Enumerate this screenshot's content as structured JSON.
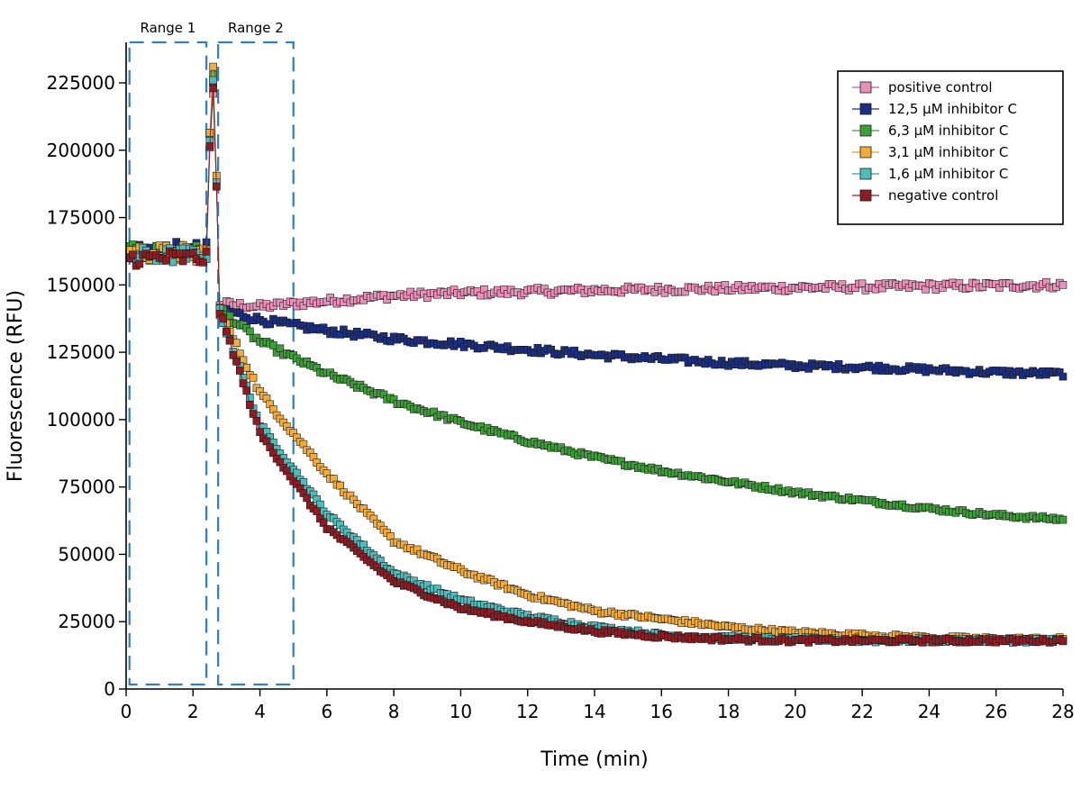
{
  "chart_data": {
    "type": "scatter",
    "xlabel": "Time (min)",
    "ylabel": "Fluorescence (RFU)",
    "xlim": [
      0,
      28
    ],
    "ylim": [
      0,
      240000
    ],
    "x_ticks": [
      "0",
      "2",
      "4",
      "6",
      "8",
      "10",
      "12",
      "14",
      "16",
      "18",
      "20",
      "22",
      "24",
      "26",
      "28"
    ],
    "y_ticks": [
      "0",
      "25000",
      "50000",
      "75000",
      "100000",
      "125000",
      "150000",
      "175000",
      "200000",
      "225000"
    ],
    "grid": false,
    "legend_position": "top-right",
    "annotations": [
      {
        "label": "Range 1",
        "x_range": [
          0.1,
          2.4
        ]
      },
      {
        "label": "Range 2",
        "x_range": [
          2.75,
          5.0
        ]
      }
    ],
    "sample_interval_min": 0.1,
    "series": [
      {
        "name": "positive control",
        "color": "#e98fb8",
        "line_color": "#b85d95",
        "baseline": 161000,
        "peak": 221000,
        "plateau": 150000,
        "points": [
          [
            2.8,
            143000
          ],
          [
            4,
            142000
          ],
          [
            6,
            144000
          ],
          [
            8,
            146000
          ],
          [
            10,
            147000
          ],
          [
            14,
            148000
          ],
          [
            20,
            149000
          ],
          [
            28,
            150000
          ]
        ]
      },
      {
        "name": "12,5 µM inhibitor C",
        "color": "#1c2e82",
        "line_color": "#1c2e82",
        "baseline": 163000,
        "peak": 225000,
        "plateau": 117000,
        "points": [
          [
            2.8,
            141000
          ],
          [
            4,
            137000
          ],
          [
            6,
            133000
          ],
          [
            8,
            130000
          ],
          [
            10,
            128000
          ],
          [
            12,
            126000
          ],
          [
            14,
            124000
          ],
          [
            16,
            122500
          ],
          [
            18,
            121000
          ],
          [
            20,
            120000
          ],
          [
            22,
            119500
          ],
          [
            24,
            118500
          ],
          [
            26,
            117500
          ],
          [
            28,
            117000
          ]
        ]
      },
      {
        "name": "6,3 µM inhibitor C",
        "color": "#3f9e3a",
        "line_color": "#3f9e3a",
        "baseline": 162000,
        "peak": 228000,
        "plateau": 63000,
        "points": [
          [
            2.8,
            141000
          ],
          [
            4,
            129000
          ],
          [
            6,
            117000
          ],
          [
            8,
            107000
          ],
          [
            10,
            99000
          ],
          [
            12,
            92000
          ],
          [
            14,
            86000
          ],
          [
            16,
            81000
          ],
          [
            18,
            77000
          ],
          [
            20,
            73000
          ],
          [
            22,
            70000
          ],
          [
            24,
            67000
          ],
          [
            26,
            64500
          ],
          [
            28,
            63000
          ]
        ]
      },
      {
        "name": "3,1 µM inhibitor C",
        "color": "#f3ac3c",
        "line_color": "#e2962a",
        "baseline": 162000,
        "peak": 231000,
        "plateau": 18500,
        "points": [
          [
            2.8,
            140000
          ],
          [
            4,
            110000
          ],
          [
            6,
            80000
          ],
          [
            8,
            55000
          ],
          [
            10,
            44000
          ],
          [
            12,
            35000
          ],
          [
            14,
            29000
          ],
          [
            16,
            26000
          ],
          [
            18,
            23000
          ],
          [
            20,
            21000
          ],
          [
            22,
            20000
          ],
          [
            24,
            19000
          ],
          [
            26,
            18500
          ],
          [
            28,
            18500
          ]
        ]
      },
      {
        "name": "1,6 µM inhibitor C",
        "color": "#4fbcbc",
        "line_color": "#3a9f9f",
        "baseline": 161000,
        "peak": 226000,
        "plateau": 18000,
        "points": [
          [
            2.8,
            140000
          ],
          [
            4,
            98000
          ],
          [
            6,
            65000
          ],
          [
            8,
            43000
          ],
          [
            10,
            33000
          ],
          [
            12,
            27000
          ],
          [
            14,
            23000
          ],
          [
            16,
            20000
          ],
          [
            18,
            19000
          ],
          [
            20,
            18500
          ],
          [
            22,
            18000
          ],
          [
            24,
            18000
          ],
          [
            26,
            18000
          ],
          [
            28,
            18000
          ]
        ]
      },
      {
        "name": "negative control",
        "color": "#8d1d25",
        "line_color": "#8d1d25",
        "baseline": 160000,
        "peak": 223000,
        "plateau": 18000,
        "points": [
          [
            2.8,
            140000
          ],
          [
            4,
            95000
          ],
          [
            6,
            60000
          ],
          [
            8,
            40000
          ],
          [
            10,
            30000
          ],
          [
            12,
            25000
          ],
          [
            14,
            21500
          ],
          [
            16,
            19500
          ],
          [
            18,
            18500
          ],
          [
            20,
            18000
          ],
          [
            22,
            18000
          ],
          [
            24,
            18000
          ],
          [
            26,
            18000
          ],
          [
            28,
            18000
          ]
        ]
      }
    ]
  }
}
